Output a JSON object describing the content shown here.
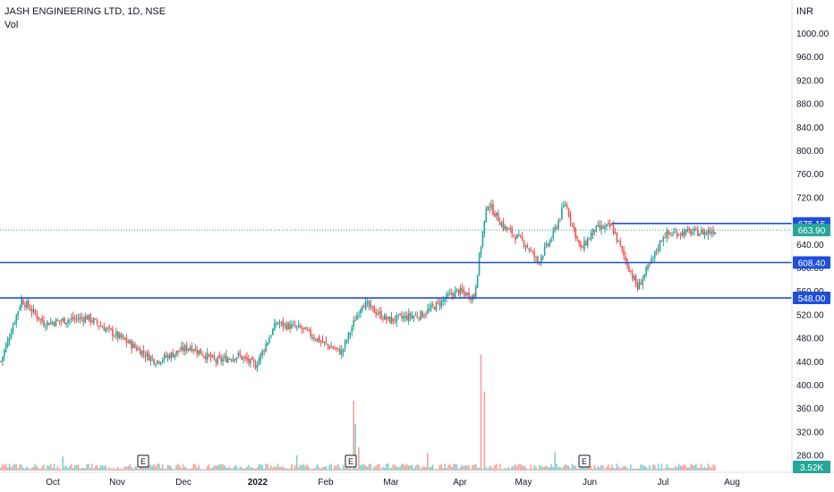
{
  "header": {
    "symbol_line": "JASH ENGINEERING LTD, 1D, NSE",
    "indicator": "Vol",
    "currency": "INR"
  },
  "colors": {
    "up": "#26a69a",
    "down": "#ef5350",
    "level_line": "#1f4fd8",
    "last_price_badge": "#26a69a",
    "axis_text": "#131722",
    "background": "#ffffff"
  },
  "chart_data": {
    "type": "candlestick",
    "interval": "1D",
    "exchange": "NSE",
    "y_axis": {
      "ticks": [
        280,
        320,
        360,
        400,
        440,
        480,
        520,
        560,
        600,
        640,
        680,
        720,
        760,
        800,
        840,
        880,
        920,
        960,
        1000
      ],
      "tick_labels": [
        "280.00",
        "320.00",
        "360.00",
        "400.00",
        "440.00",
        "480.00",
        "520.00",
        "560.00",
        "600.00",
        "640.00",
        "680.00",
        "720.00",
        "760.00",
        "800.00",
        "840.00",
        "880.00",
        "920.00",
        "960.00",
        "1000.00"
      ],
      "ylim": [
        256,
        1027
      ]
    },
    "x_axis": {
      "tick_labels": [
        "Oct",
        "Nov",
        "Dec",
        "2022",
        "Feb",
        "Mar",
        "Apr",
        "May",
        "Jun",
        "Jul",
        "Aug"
      ]
    },
    "price_anchors": [
      {
        "t": 0,
        "v": 440
      },
      {
        "t": 12,
        "v": 545
      },
      {
        "t": 25,
        "v": 505
      },
      {
        "t": 50,
        "v": 515
      },
      {
        "t": 75,
        "v": 470
      },
      {
        "t": 90,
        "v": 440
      },
      {
        "t": 110,
        "v": 465
      },
      {
        "t": 125,
        "v": 440
      },
      {
        "t": 138,
        "v": 450
      },
      {
        "t": 148,
        "v": 432
      },
      {
        "t": 160,
        "v": 505
      },
      {
        "t": 175,
        "v": 495
      },
      {
        "t": 188,
        "v": 470
      },
      {
        "t": 198,
        "v": 455
      },
      {
        "t": 210,
        "v": 540
      },
      {
        "t": 225,
        "v": 510
      },
      {
        "t": 245,
        "v": 520
      },
      {
        "t": 265,
        "v": 560
      },
      {
        "t": 275,
        "v": 550
      },
      {
        "t": 280,
        "v": 660
      },
      {
        "t": 283,
        "v": 710
      },
      {
        "t": 292,
        "v": 670
      },
      {
        "t": 305,
        "v": 640
      },
      {
        "t": 312,
        "v": 610
      },
      {
        "t": 320,
        "v": 650
      },
      {
        "t": 328,
        "v": 710
      },
      {
        "t": 337,
        "v": 630
      },
      {
        "t": 345,
        "v": 665
      },
      {
        "t": 355,
        "v": 670
      },
      {
        "t": 362,
        "v": 620
      },
      {
        "t": 370,
        "v": 565
      },
      {
        "t": 378,
        "v": 610
      },
      {
        "t": 385,
        "v": 655
      },
      {
        "t": 395,
        "v": 660
      },
      {
        "t": 410,
        "v": 660
      },
      {
        "t": 415,
        "v": 664
      }
    ],
    "volume": {
      "current_label": "3.52K",
      "spikes": [
        {
          "t": 205,
          "v": 60
        },
        {
          "t": 206,
          "v": 40
        },
        {
          "t": 208,
          "v": 20
        },
        {
          "t": 279,
          "v": 100
        },
        {
          "t": 281,
          "v": 68
        },
        {
          "t": 322,
          "v": 16
        },
        {
          "t": 172,
          "v": 13
        },
        {
          "t": 36,
          "v": 12
        },
        {
          "t": 248,
          "v": 15
        }
      ]
    },
    "earnings_markers": [
      "E",
      "E",
      "E"
    ],
    "horizontal_levels": [
      {
        "value": 675.15,
        "label": "675.15"
      },
      {
        "value": 608.4,
        "label": "608.40"
      },
      {
        "value": 548.0,
        "label": "548.00"
      }
    ],
    "last_price": {
      "value": 663.9,
      "label": "663.90"
    },
    "grid": false,
    "legend": "none"
  }
}
